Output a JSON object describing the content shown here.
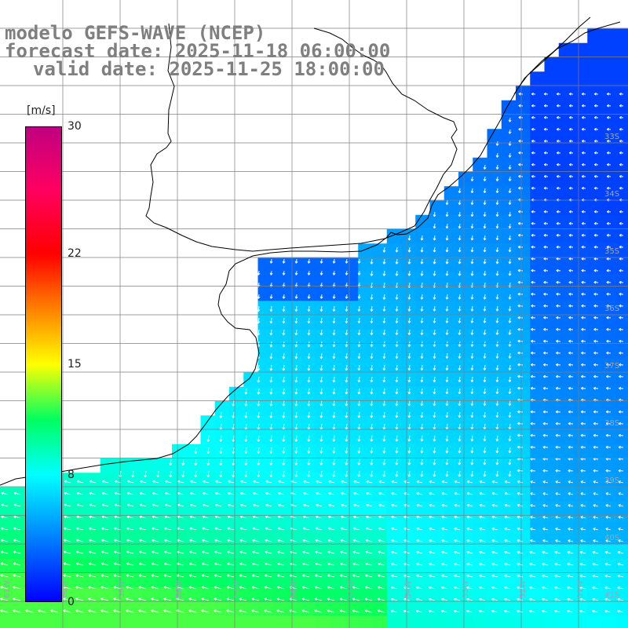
{
  "title": {
    "model": "modelo GEFS-WAVE (NCEP)",
    "forecast": "forecast date: 2025-11-18 06:00:00",
    "valid": "valid date: 2025-11-25 18:00:00"
  },
  "colorbar": {
    "unit": "[m/s]",
    "ticks": [
      {
        "label": "30",
        "value": 30
      },
      {
        "label": "22",
        "value": 22
      },
      {
        "label": "15",
        "value": 15
      },
      {
        "label": "8",
        "value": 8
      },
      {
        "label": "0",
        "value": 0
      }
    ],
    "range": [
      0,
      30
    ]
  },
  "map": {
    "lat_labels": [
      "33S",
      "34S",
      "35S",
      "36S",
      "37S",
      "38S",
      "39S",
      "40S",
      "41S"
    ],
    "lon_labels": [
      "61W",
      "60W",
      "59W",
      "58W",
      "57W",
      "56W",
      "55W",
      "54W",
      "53W",
      "52W",
      "51W"
    ],
    "lat_range": [
      -41.5,
      -31.0
    ],
    "lon_range": [
      -61.4,
      -50.5
    ],
    "colors": {
      "land": "#ffffff",
      "coast": "#000000",
      "grid": "#7f7f7f",
      "vectors": "#ffffff",
      "title_text": "#7f7f7f"
    }
  }
}
